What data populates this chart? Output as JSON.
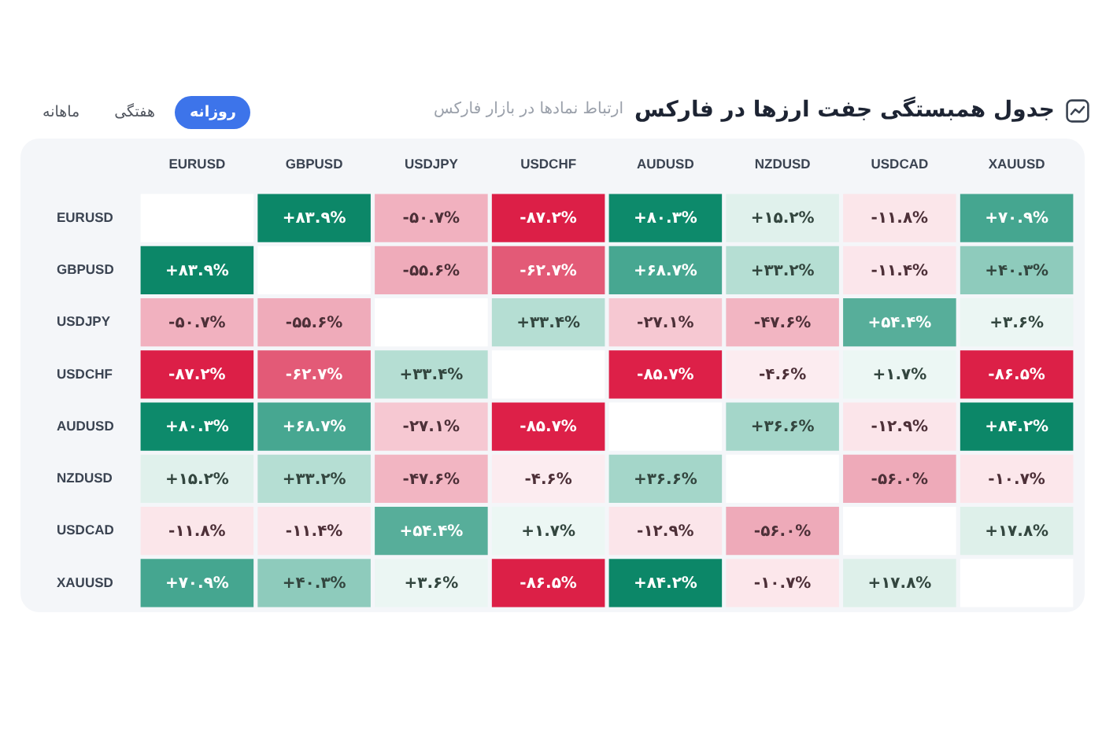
{
  "chart_data": {
    "type": "heatmap",
    "title": "جدول همبستگی جفت ارزها در فارکس",
    "subtitle": "ارتباط نمادها در بازار فارکس",
    "annotations": [
      "روزانه",
      "هفتگی",
      "ماهانه"
    ],
    "categories": [
      "EURUSD",
      "GBPUSD",
      "USDJPY",
      "USDCHF",
      "AUDUSD",
      "NZDUSD",
      "USDCAD",
      "XAUUSD"
    ],
    "y_categories": [
      "EURUSD",
      "GBPUSD",
      "USDJPY",
      "USDCHF",
      "AUDUSD",
      "NZDUSD",
      "USDCAD",
      "XAUUSD"
    ],
    "cells": [
      [
        null,
        83.9,
        -50.7,
        -87.2,
        80.3,
        15.2,
        -11.8,
        70.9
      ],
      [
        83.9,
        null,
        -55.6,
        -62.7,
        68.7,
        33.2,
        -11.4,
        40.3
      ],
      [
        -50.7,
        -55.6,
        null,
        33.4,
        -27.1,
        -47.6,
        54.4,
        3.6
      ],
      [
        -87.2,
        -62.7,
        33.4,
        null,
        -85.7,
        -4.6,
        1.7,
        -86.5
      ],
      [
        80.3,
        68.7,
        -27.1,
        -85.7,
        null,
        36.6,
        -12.9,
        84.2
      ],
      [
        15.2,
        33.2,
        -47.6,
        -4.6,
        36.6,
        null,
        -56.0,
        -10.7
      ],
      [
        -11.8,
        -11.4,
        54.4,
        1.7,
        -12.9,
        -56.0,
        null,
        17.8
      ],
      [
        70.9,
        40.3,
        3.6,
        -86.5,
        84.2,
        -10.7,
        17.8,
        null
      ]
    ],
    "cell_labels": [
      [
        null,
        "+۸۳.۹%",
        "-۵۰.۷%",
        "-۸۷.۲%",
        "+۸۰.۳%",
        "+۱۵.۲%",
        "-۱۱.۸%",
        "+۷۰.۹%"
      ],
      [
        "+۸۳.۹%",
        null,
        "-۵۵.۶%",
        "-۶۲.۷%",
        "+۶۸.۷%",
        "+۳۳.۲%",
        "-۱۱.۴%",
        "+۴۰.۳%"
      ],
      [
        "-۵۰.۷%",
        "-۵۵.۶%",
        null,
        "+۳۳.۴%",
        "-۲۷.۱%",
        "-۴۷.۶%",
        "+۵۴.۴%",
        "+۳.۶%"
      ],
      [
        "-۸۷.۲%",
        "-۶۲.۷%",
        "+۳۳.۴%",
        null,
        "-۸۵.۷%",
        "-۴.۶%",
        "+۱.۷%",
        "-۸۶.۵%"
      ],
      [
        "+۸۰.۳%",
        "+۶۸.۷%",
        "-۲۷.۱%",
        "-۸۵.۷%",
        null,
        "+۳۶.۶%",
        "-۱۲.۹%",
        "+۸۴.۲%"
      ],
      [
        "+۱۵.۲%",
        "+۳۳.۲%",
        "-۴۷.۶%",
        "-۴.۶%",
        "+۳۶.۶%",
        null,
        "-۵۶.۰%",
        "-۱۰.۷%"
      ],
      [
        "-۱۱.۸%",
        "-۱۱.۴%",
        "+۵۴.۴%",
        "+۱.۷%",
        "-۱۲.۹%",
        "-۵۶.۰%",
        null,
        "+۱۷.۸%"
      ],
      [
        "+۷۰.۹%",
        "+۴۰.۳%",
        "+۳.۶%",
        "-۸۶.۵%",
        "+۸۴.۲%",
        "-۱۰.۷%",
        "+۱۷.۸%",
        null
      ]
    ]
  }
}
